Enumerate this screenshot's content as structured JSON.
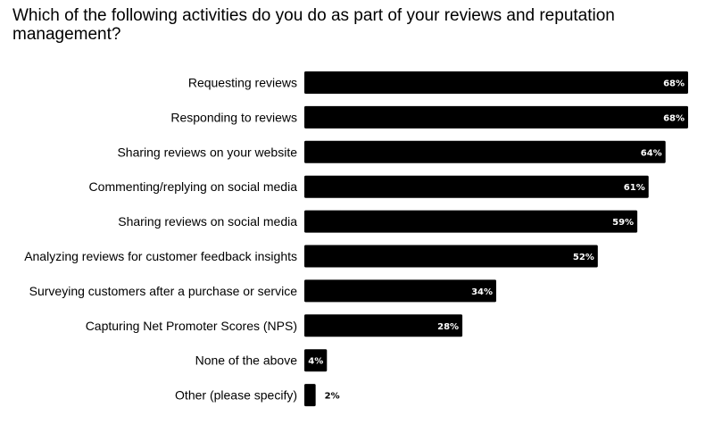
{
  "chart_data": {
    "type": "bar",
    "orientation": "horizontal",
    "title": "Which of the following activities do you do as part of your reviews and reputation management?",
    "categories": [
      "Requesting reviews",
      "Responding to reviews",
      "Sharing reviews on your website",
      "Commenting/replying on social media",
      "Sharing reviews on social media",
      "Analyzing reviews for customer feedback insights",
      "Surveying customers after a purchase or service",
      "Capturing Net Promoter Scores (NPS)",
      "None of the above",
      "Other (please specify)"
    ],
    "values": [
      68,
      68,
      64,
      61,
      59,
      52,
      34,
      28,
      4,
      2
    ],
    "value_labels": [
      "68%",
      "68%",
      "64%",
      "61%",
      "59%",
      "52%",
      "34%",
      "28%",
      "4%",
      "2%"
    ],
    "xlim": [
      0,
      68
    ],
    "grid": false,
    "bar_color": "#000000",
    "label_color_inside": "#ffffff",
    "label_color_outside": "#000000"
  }
}
